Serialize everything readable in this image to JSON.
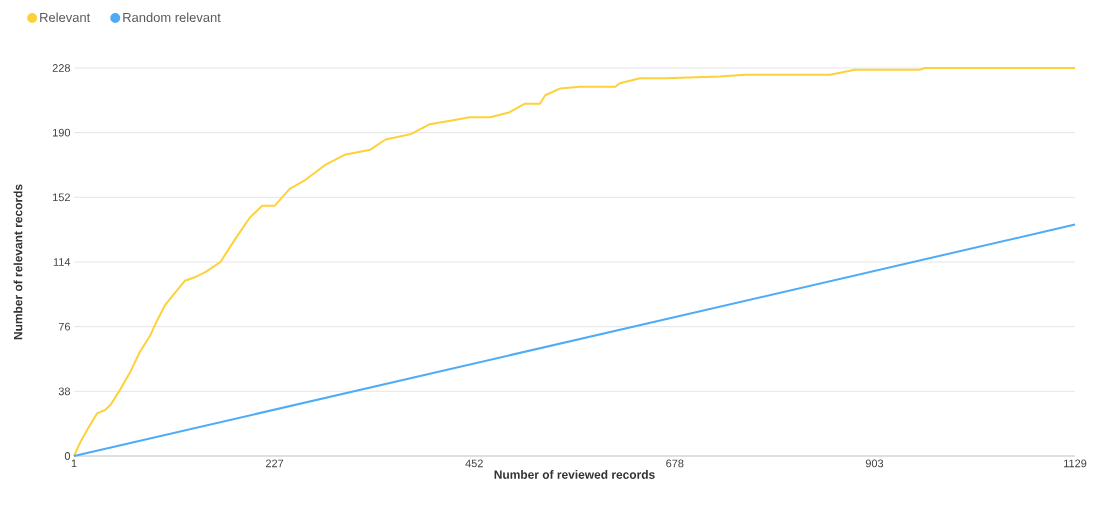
{
  "chart_data": {
    "type": "line",
    "xlabel": "Number of reviewed records",
    "ylabel": "Number of relevant records",
    "series": [
      {
        "name": "Relevant",
        "color": "#fdd13a",
        "x": [
          1,
          8,
          17,
          27,
          36,
          42,
          47,
          53,
          64,
          75,
          87,
          95,
          104,
          115,
          126,
          137,
          149,
          166,
          182,
          199,
          213,
          227,
          244,
          261,
          284,
          306,
          335,
          352,
          380,
          402,
          425,
          447,
          470,
          492,
          509,
          526,
          532,
          549,
          571,
          611,
          616,
          639,
          667,
          729,
          757,
          853,
          881,
          954,
          960,
          1129
        ],
        "values": [
          0,
          8,
          16.5,
          25,
          27,
          30,
          34,
          39,
          49,
          61,
          71,
          80,
          89,
          96,
          103,
          105,
          108,
          114,
          127,
          140,
          147,
          147,
          157,
          162,
          171,
          177,
          180,
          186,
          189,
          195,
          197,
          199,
          199,
          202,
          207,
          207,
          212,
          216,
          217,
          217,
          219,
          222,
          222,
          223,
          224,
          224,
          227,
          227,
          228,
          228
        ]
      },
      {
        "name": "Random relevant",
        "color": "#4dabf7",
        "x": [
          1,
          1129
        ],
        "values": [
          0,
          136
        ]
      }
    ],
    "xlim": [
      1,
      1129
    ],
    "ylim": [
      0,
      228
    ],
    "xticks": [
      1,
      227,
      452,
      678,
      903,
      1129
    ],
    "yticks": [
      0,
      38,
      76,
      114,
      152,
      190,
      228
    ],
    "grid": "y",
    "legend": "top left",
    "marker": "none",
    "line_style": "solid"
  }
}
